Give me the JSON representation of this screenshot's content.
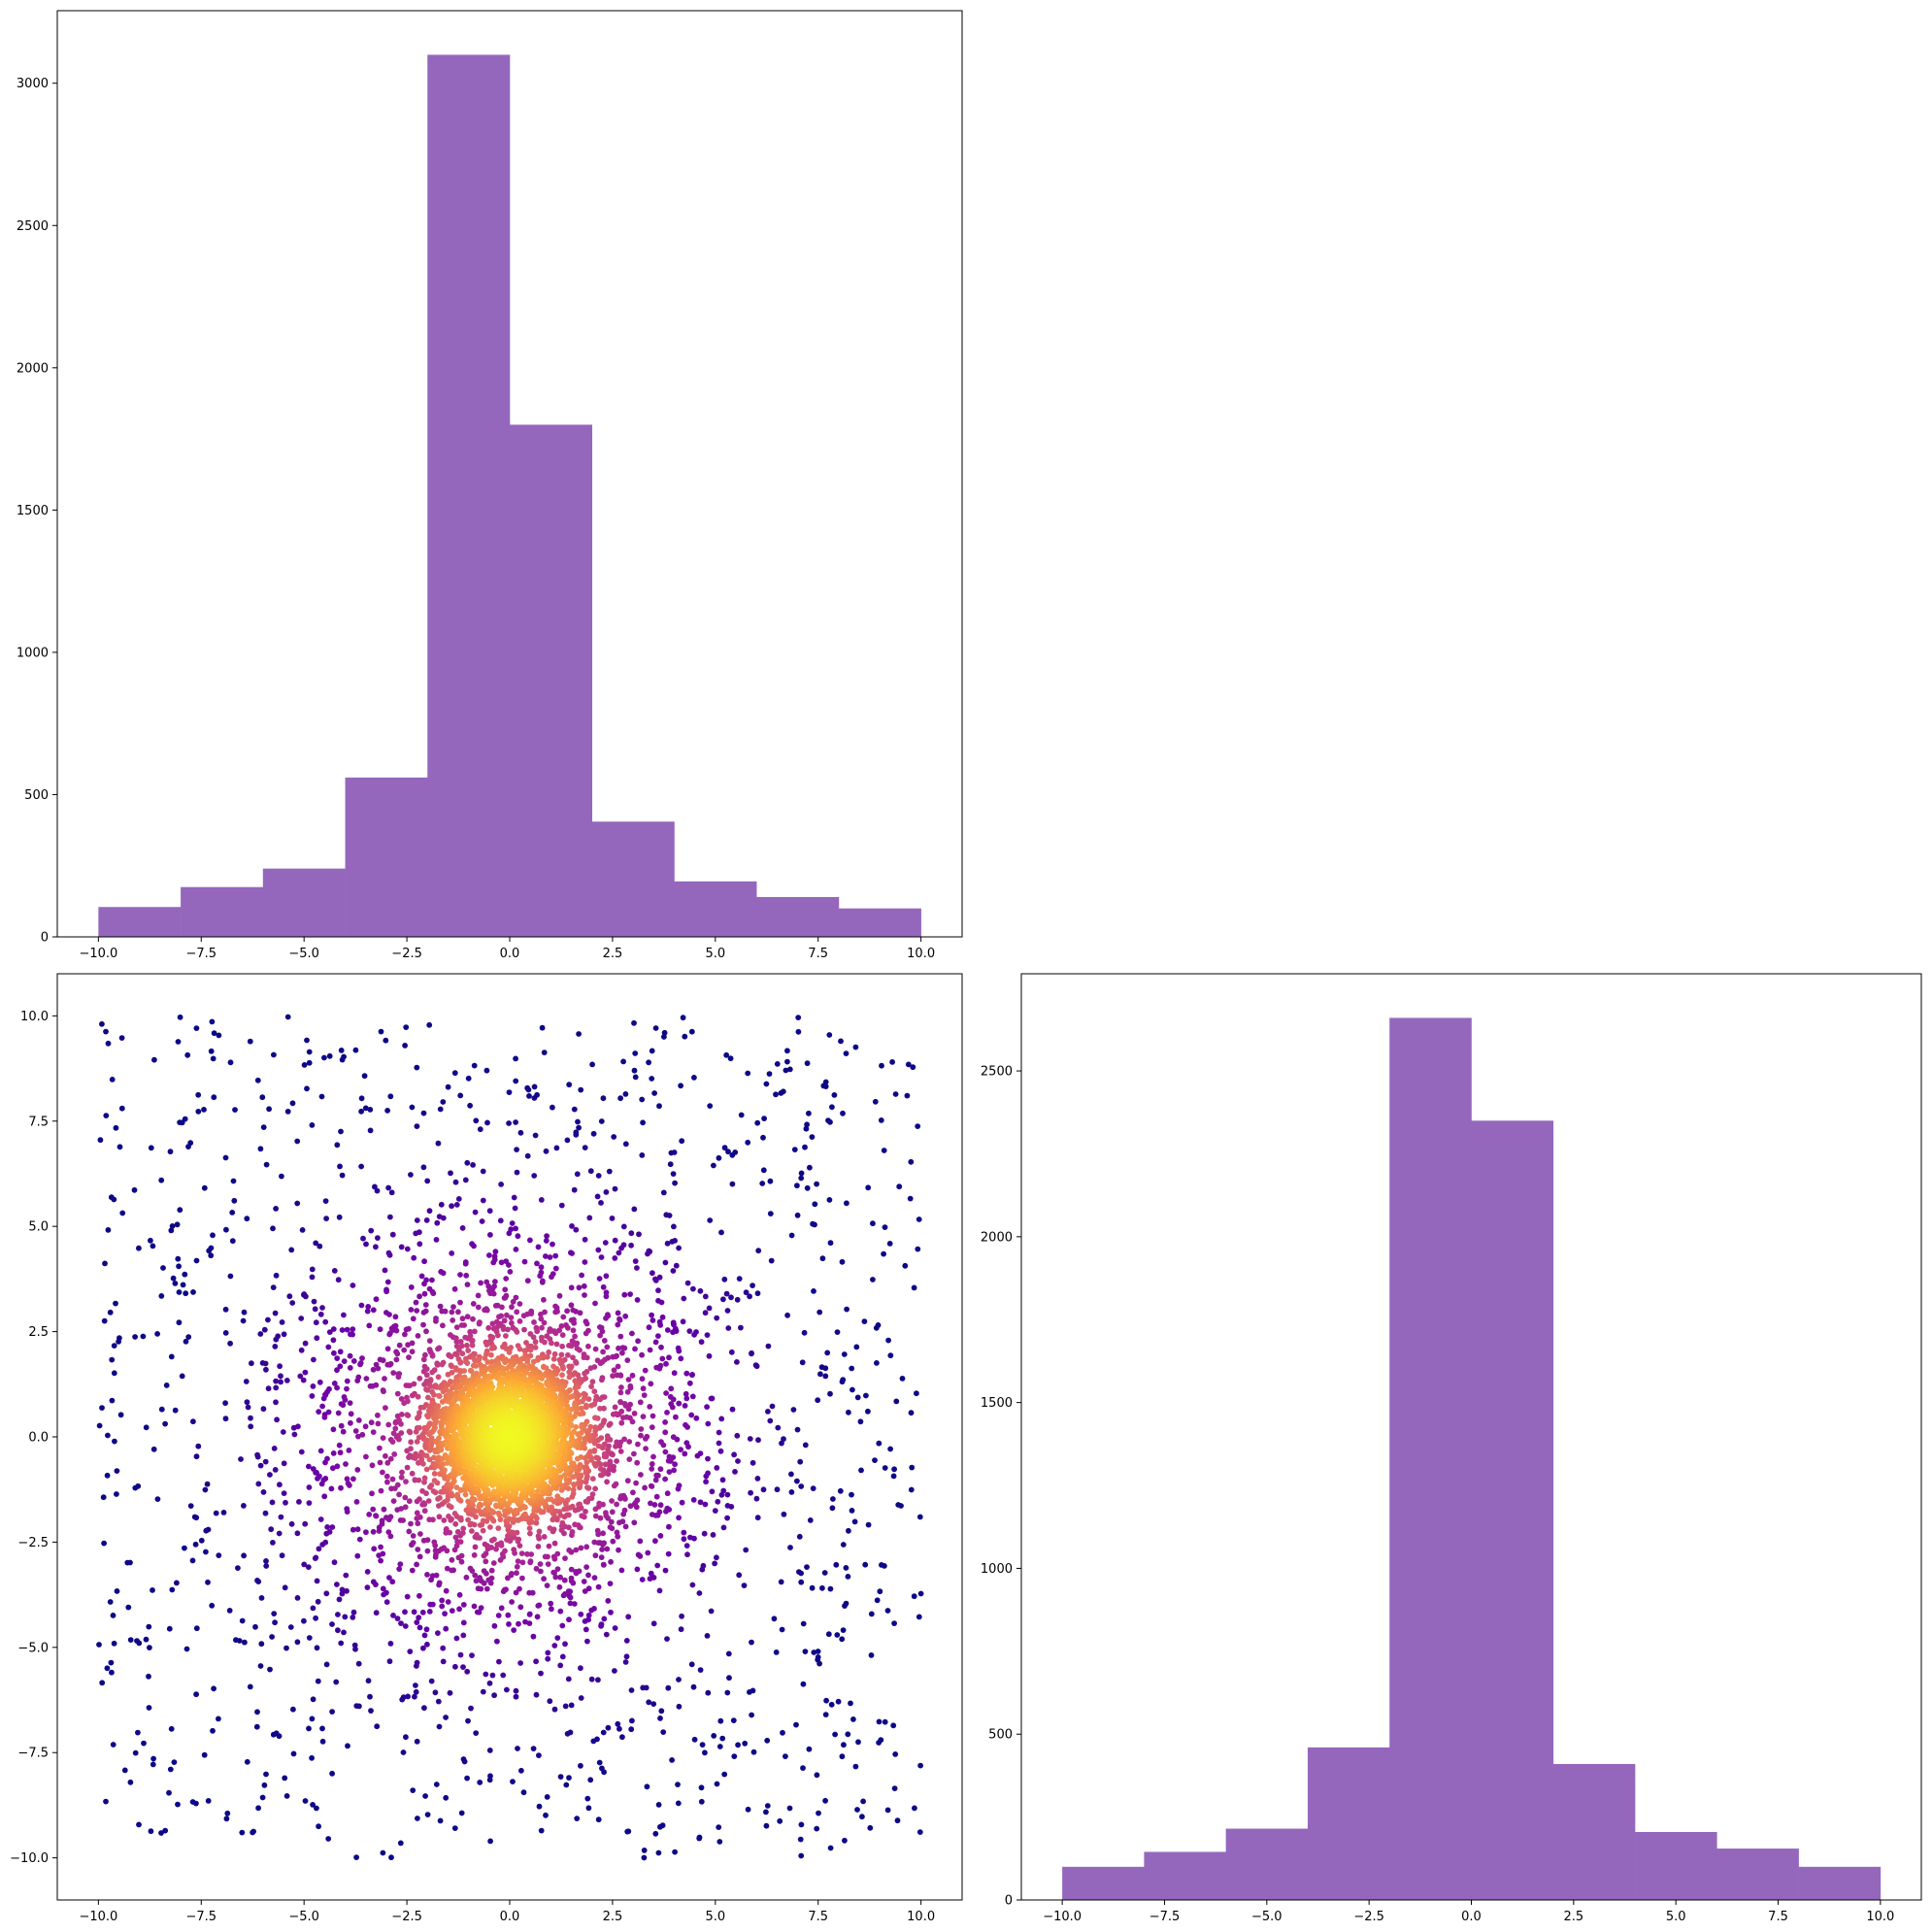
{
  "chart_data": [
    {
      "id": "top_hist",
      "type": "bar",
      "subtype": "histogram",
      "bin_edges": [
        -10,
        -8,
        -6,
        -4,
        -2,
        0,
        2,
        4,
        6,
        8,
        10
      ],
      "values": [
        105,
        175,
        240,
        560,
        3100,
        1800,
        405,
        195,
        140,
        100
      ],
      "xlim": [
        -11,
        11
      ],
      "ylim": [
        0,
        3255
      ],
      "xticks": [
        -10,
        -7.5,
        -5,
        -2.5,
        0,
        2.5,
        5,
        7.5,
        10
      ],
      "xtick_labels": [
        "−10.0",
        "−7.5",
        "−5.0",
        "−2.5",
        "0.0",
        "2.5",
        "5.0",
        "7.5",
        "10.0"
      ],
      "yticks": [
        0,
        500,
        1000,
        1500,
        2000,
        2500,
        3000
      ],
      "ytick_labels": [
        "0",
        "500",
        "1000",
        "1500",
        "2000",
        "2500",
        "3000"
      ],
      "color": "#9467bd",
      "title": "",
      "xlabel": "",
      "ylabel": ""
    },
    {
      "id": "scatter",
      "type": "scatter",
      "description_of_data": "~6000 points, dense core at origin fading outward; point colour by local density (plasma colormap)",
      "n_points": 6000,
      "xlim": [
        -11,
        11
      ],
      "ylim": [
        -11,
        11
      ],
      "xticks": [
        -10,
        -7.5,
        -5,
        -2.5,
        0,
        2.5,
        5,
        7.5,
        10
      ],
      "xtick_labels": [
        "−10.0",
        "−7.5",
        "−5.0",
        "−2.5",
        "0.0",
        "2.5",
        "5.0",
        "7.5",
        "10.0"
      ],
      "yticks": [
        -10,
        -7.5,
        -5,
        -2.5,
        0,
        2.5,
        5,
        7.5,
        10
      ],
      "ytick_labels": [
        "−10.0",
        "−7.5",
        "−5.0",
        "−2.5",
        "0.0",
        "2.5",
        "5.0",
        "7.5",
        "10.0"
      ],
      "colormap": [
        "#0d0887",
        "#6a00a8",
        "#b12a90",
        "#e16462",
        "#fca636",
        "#f0f921"
      ],
      "title": "",
      "xlabel": "",
      "ylabel": ""
    },
    {
      "id": "right_hist",
      "type": "bar",
      "subtype": "histogram",
      "bin_edges": [
        -10,
        -8,
        -6,
        -4,
        -2,
        0,
        2,
        4,
        6,
        8,
        10
      ],
      "values": [
        100,
        145,
        215,
        460,
        2660,
        2350,
        410,
        205,
        155,
        100
      ],
      "xlim": [
        -11,
        11
      ],
      "ylim": [
        0,
        2793
      ],
      "xticks": [
        -10,
        -7.5,
        -5,
        -2.5,
        0,
        2.5,
        5,
        7.5,
        10
      ],
      "xtick_labels": [
        "−10.0",
        "−7.5",
        "−5.0",
        "−2.5",
        "0.0",
        "2.5",
        "5.0",
        "7.5",
        "10.0"
      ],
      "yticks": [
        0,
        500,
        1000,
        1500,
        2000,
        2500
      ],
      "ytick_labels": [
        "0",
        "500",
        "1000",
        "1500",
        "2000",
        "2500"
      ],
      "color": "#9467bd",
      "title": "",
      "xlabel": "",
      "ylabel": ""
    }
  ]
}
